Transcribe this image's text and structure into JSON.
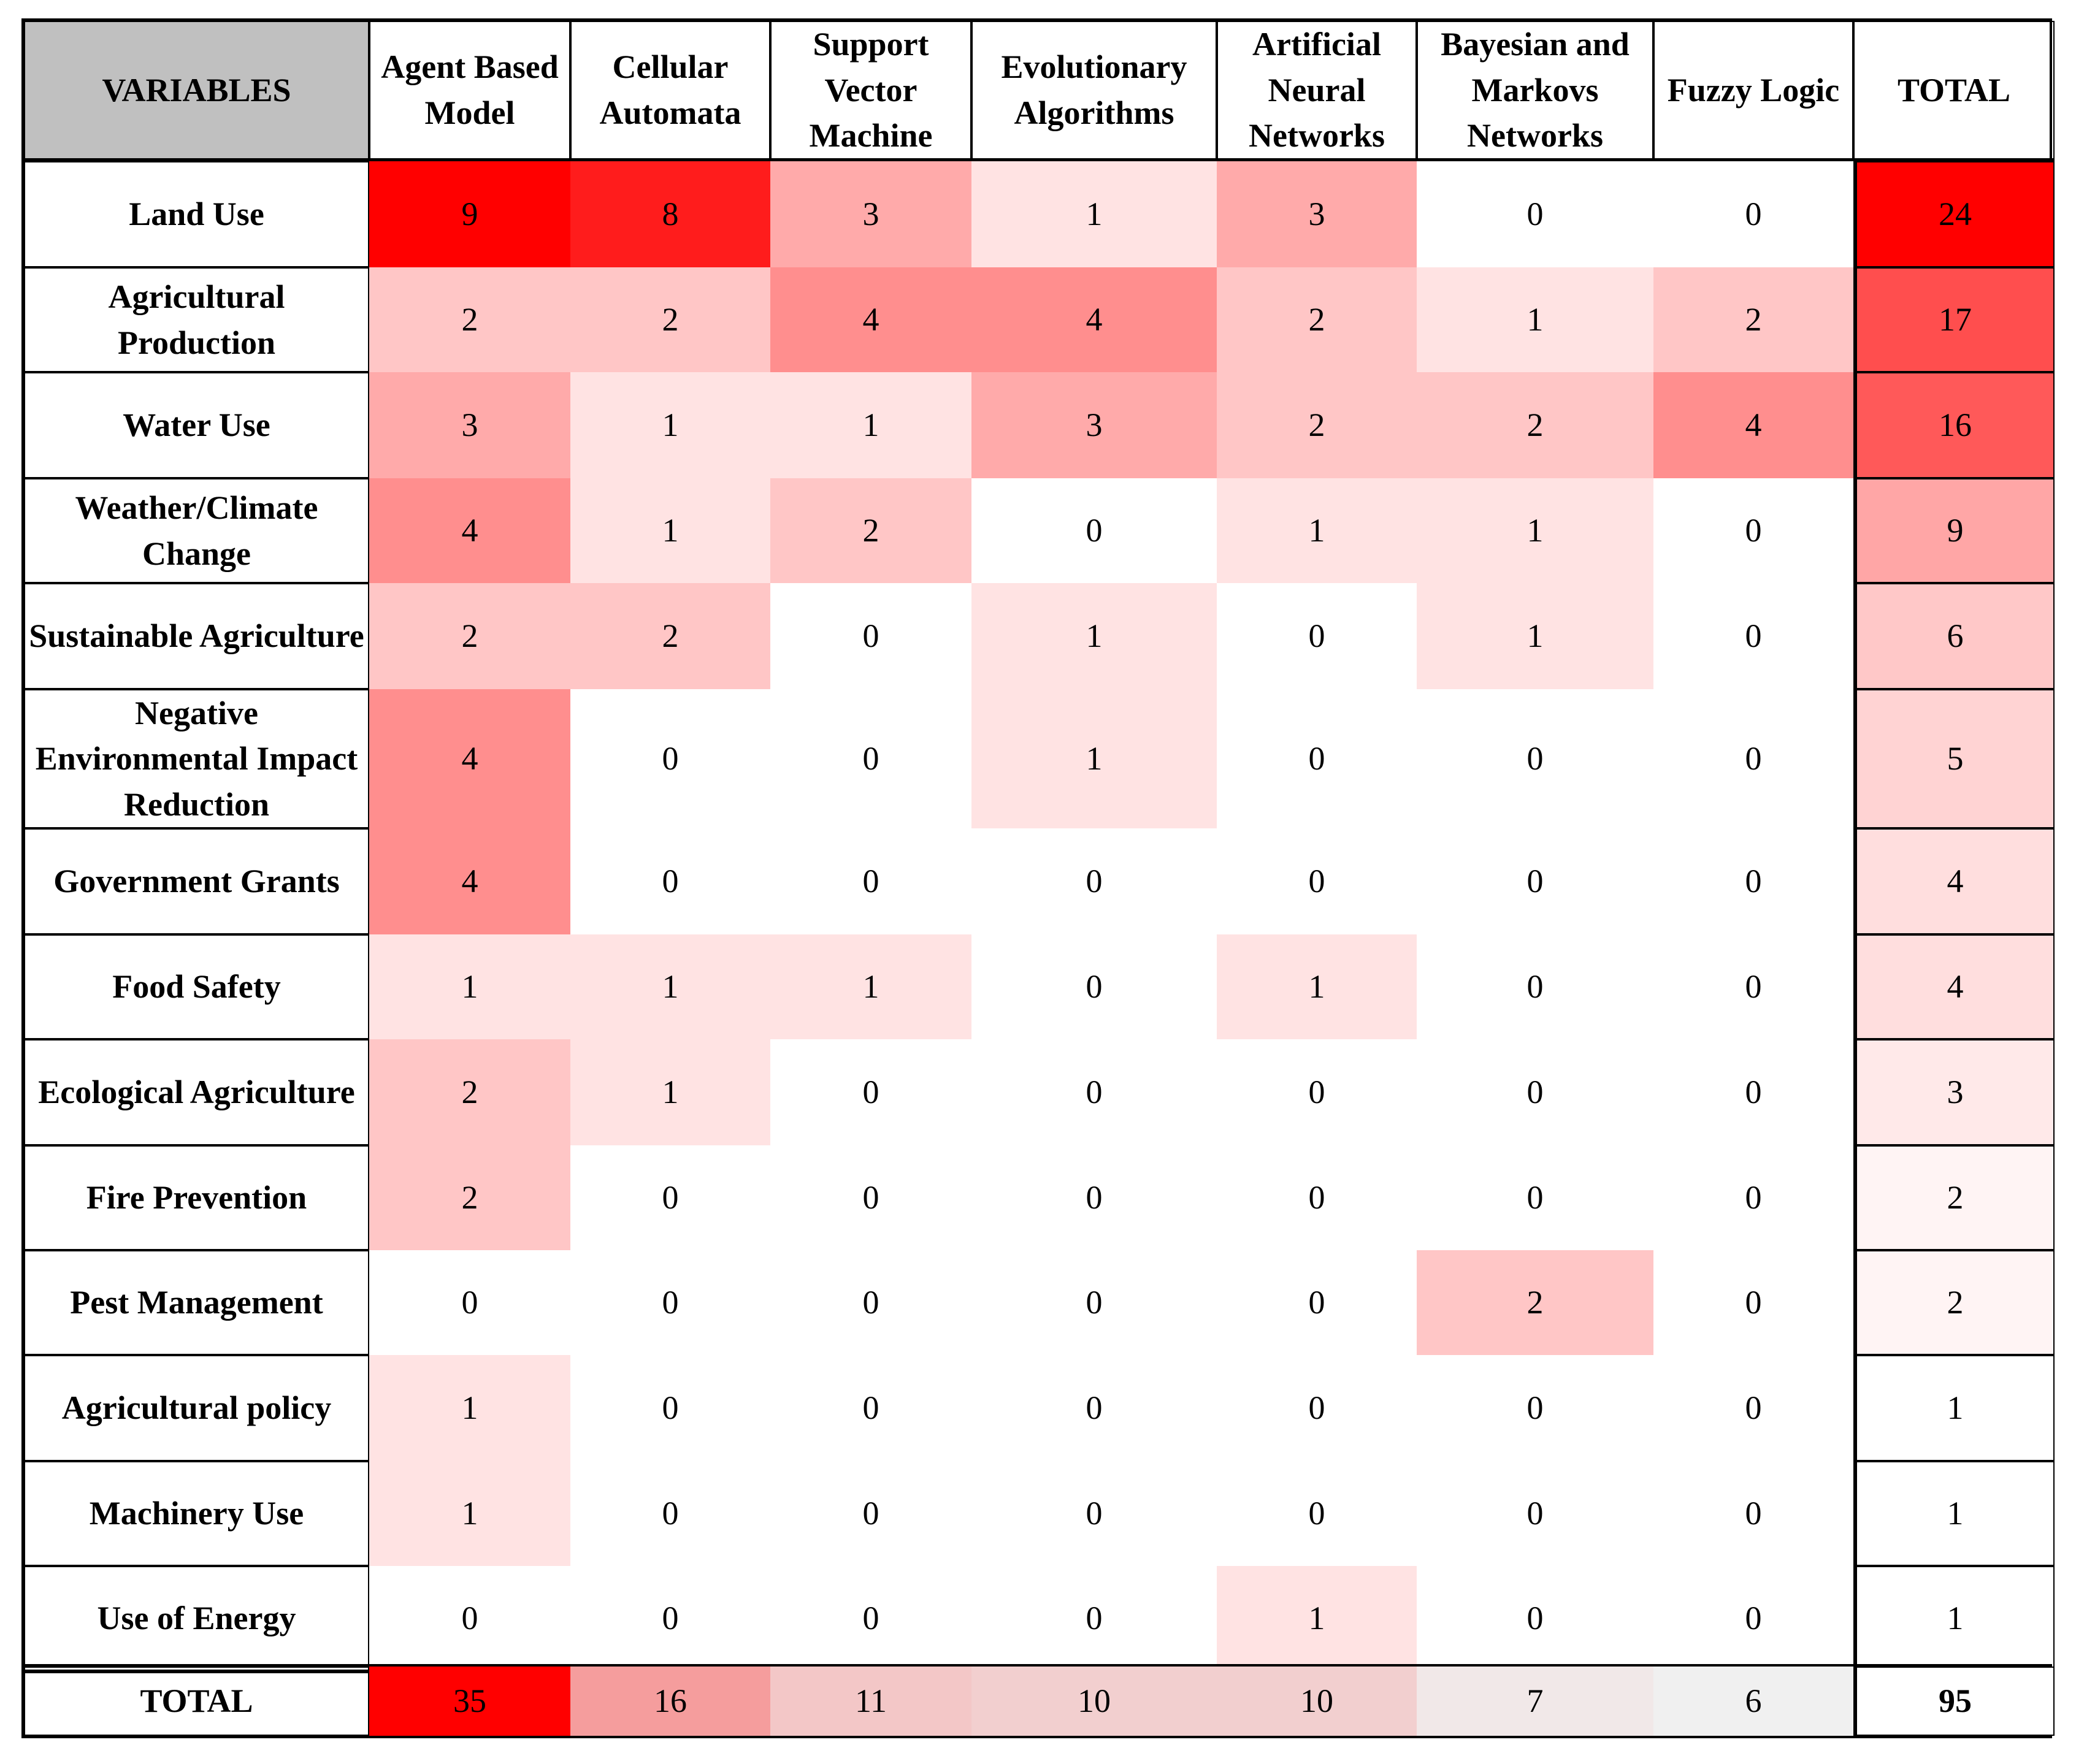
{
  "table": {
    "header": {
      "title": "VARIABLES",
      "columns": [
        "Agent Based Model",
        "Cellular Automata",
        "Support Vector Machine",
        "Evolutionary Algorithms",
        "Artificial Neural Networks",
        "Bayesian and Markovs Networks",
        "Fuzzy Logic"
      ],
      "total": "TOTAL"
    },
    "rows": [
      {
        "label": "Land Use",
        "values": [
          9,
          8,
          3,
          1,
          3,
          0,
          0
        ],
        "total": 24
      },
      {
        "label": "Agricultural Production",
        "values": [
          2,
          2,
          4,
          4,
          2,
          1,
          2
        ],
        "total": 17
      },
      {
        "label": "Water Use",
        "values": [
          3,
          1,
          1,
          3,
          2,
          2,
          4
        ],
        "total": 16
      },
      {
        "label": "Weather/Climate Change",
        "values": [
          4,
          1,
          2,
          0,
          1,
          1,
          0
        ],
        "total": 9
      },
      {
        "label": "Sustainable Agriculture",
        "values": [
          2,
          2,
          0,
          1,
          0,
          1,
          0
        ],
        "total": 6
      },
      {
        "label": "Negative Environmental Impact Reduction",
        "values": [
          4,
          0,
          0,
          1,
          0,
          0,
          0
        ],
        "total": 5
      },
      {
        "label": "Government Grants",
        "values": [
          4,
          0,
          0,
          0,
          0,
          0,
          0
        ],
        "total": 4
      },
      {
        "label": "Food Safety",
        "values": [
          1,
          1,
          1,
          0,
          1,
          0,
          0
        ],
        "total": 4
      },
      {
        "label": "Ecological Agriculture",
        "values": [
          2,
          1,
          0,
          0,
          0,
          0,
          0
        ],
        "total": 3
      },
      {
        "label": "Fire Prevention",
        "values": [
          2,
          0,
          0,
          0,
          0,
          0,
          0
        ],
        "total": 2
      },
      {
        "label": "Pest Management",
        "values": [
          0,
          0,
          0,
          0,
          0,
          2,
          0
        ],
        "total": 2
      },
      {
        "label": "Agricultural policy",
        "values": [
          1,
          0,
          0,
          0,
          0,
          0,
          0
        ],
        "total": 1
      },
      {
        "label": "Machinery Use",
        "values": [
          1,
          0,
          0,
          0,
          0,
          0,
          0
        ],
        "total": 1
      },
      {
        "label": "Use of Energy",
        "values": [
          0,
          0,
          0,
          0,
          1,
          0,
          0
        ],
        "total": 1
      }
    ],
    "totals": {
      "label": "TOTAL",
      "values": [
        35,
        16,
        11,
        10,
        10,
        7,
        6
      ],
      "grand": 95
    }
  }
}
